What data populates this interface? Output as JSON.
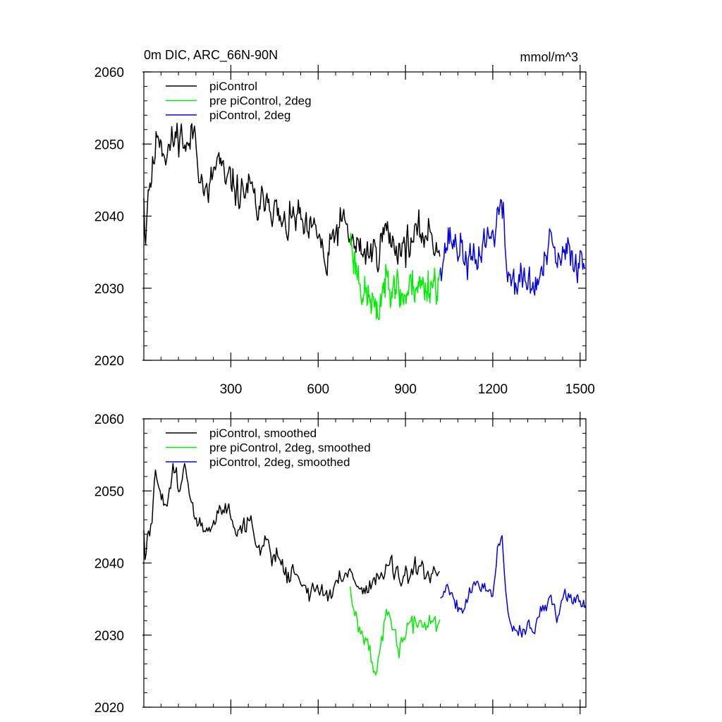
{
  "page": {
    "title": "0m DIC, ARC_66N-90N",
    "units": "mmol/m^3"
  },
  "chart_data": [
    {
      "type": "line",
      "title": "0m DIC, ARC_66N-90N",
      "units_label": "mmol/m^3",
      "xlim": [
        1,
        1520
      ],
      "ylim": [
        2020,
        2060
      ],
      "xticks": [
        300,
        600,
        900,
        1200,
        1500
      ],
      "xtick_labels": [
        "300",
        "600",
        "900",
        "1200",
        "1500"
      ],
      "yticks": [
        2020,
        2030,
        2040,
        2050,
        2060
      ],
      "ytick_labels": [
        "2020",
        "2030",
        "2040",
        "2050",
        "2060"
      ],
      "show_xtick_labels": true,
      "legend_position": "top-left",
      "series": [
        {
          "name": "piControl",
          "color": "#000000",
          "x_start": 1,
          "x_end": 1020,
          "step": 3,
          "keypoints": [
            [
              1,
              2044
            ],
            [
              5,
              2036
            ],
            [
              15,
              2044
            ],
            [
              30,
              2046
            ],
            [
              50,
              2052
            ],
            [
              75,
              2049
            ],
            [
              100,
              2050
            ],
            [
              125,
              2052
            ],
            [
              150,
              2049
            ],
            [
              175,
              2052
            ],
            [
              200,
              2045
            ],
            [
              220,
              2042
            ],
            [
              240,
              2046
            ],
            [
              260,
              2048
            ],
            [
              280,
              2044
            ],
            [
              300,
              2045
            ],
            [
              330,
              2043
            ],
            [
              360,
              2044
            ],
            [
              380,
              2042
            ],
            [
              400,
              2040
            ],
            [
              420,
              2044
            ],
            [
              450,
              2041
            ],
            [
              480,
              2038
            ],
            [
              500,
              2039
            ],
            [
              530,
              2040
            ],
            [
              560,
              2037
            ],
            [
              600,
              2038
            ],
            [
              630,
              2032
            ],
            [
              650,
              2037
            ],
            [
              680,
              2039
            ],
            [
              700,
              2038
            ],
            [
              720,
              2036
            ],
            [
              760,
              2035
            ],
            [
              800,
              2035
            ],
            [
              830,
              2038
            ],
            [
              860,
              2036
            ],
            [
              900,
              2036
            ],
            [
              940,
              2037
            ],
            [
              980,
              2038
            ],
            [
              1020,
              2035
            ]
          ],
          "jitter": 3.6,
          "seed": 11
        },
        {
          "name": "pre piControl, 2deg",
          "color": "#00ee00",
          "x_start": 710,
          "x_end": 1020,
          "step": 2,
          "keypoints": [
            [
              710,
              2037
            ],
            [
              730,
              2033
            ],
            [
              760,
              2029
            ],
            [
              790,
              2028
            ],
            [
              800,
              2025
            ],
            [
              820,
              2030
            ],
            [
              840,
              2031
            ],
            [
              860,
              2032
            ],
            [
              880,
              2029
            ],
            [
              900,
              2029
            ],
            [
              930,
              2031
            ],
            [
              960,
              2030
            ],
            [
              990,
              2031
            ],
            [
              1020,
              2031
            ]
          ],
          "jitter": 3.8,
          "seed": 23
        },
        {
          "name": "piControl, 2deg",
          "color": "#0000ee",
          "x_start": 1020,
          "x_end": 1520,
          "step": 3,
          "keypoints": [
            [
              1020,
              2034
            ],
            [
              1050,
              2037
            ],
            [
              1080,
              2036
            ],
            [
              1110,
              2034
            ],
            [
              1140,
              2033
            ],
            [
              1170,
              2037
            ],
            [
              1200,
              2037
            ],
            [
              1220,
              2041
            ],
            [
              1235,
              2040
            ],
            [
              1250,
              2032
            ],
            [
              1280,
              2031
            ],
            [
              1310,
              2031
            ],
            [
              1340,
              2030
            ],
            [
              1370,
              2032
            ],
            [
              1400,
              2036
            ],
            [
              1430,
              2033
            ],
            [
              1460,
              2035
            ],
            [
              1490,
              2034
            ],
            [
              1520,
              2033
            ]
          ],
          "jitter": 3.7,
          "seed": 37
        }
      ]
    },
    {
      "type": "line",
      "title": "",
      "xlim": [
        1,
        1520
      ],
      "ylim": [
        2020,
        2060
      ],
      "xticks": [
        300,
        600,
        900,
        1200,
        1500
      ],
      "xtick_labels": [],
      "yticks": [
        2020,
        2030,
        2040,
        2050,
        2060
      ],
      "ytick_labels": [
        "2020",
        "2030",
        "2040",
        "2050",
        "2060"
      ],
      "show_xtick_labels": false,
      "legend_position": "top-left",
      "series": [
        {
          "name": "piControl, smoothed",
          "color": "#000000",
          "x_start": 1,
          "x_end": 1020,
          "step": 4,
          "keypoints": [
            [
              1,
              2044
            ],
            [
              5,
              2040
            ],
            [
              15,
              2044
            ],
            [
              30,
              2045
            ],
            [
              40,
              2052
            ],
            [
              55,
              2051
            ],
            [
              75,
              2048
            ],
            [
              100,
              2053
            ],
            [
              120,
              2051
            ],
            [
              140,
              2054
            ],
            [
              160,
              2048
            ],
            [
              180,
              2046
            ],
            [
              200,
              2045
            ],
            [
              230,
              2044
            ],
            [
              260,
              2047
            ],
            [
              290,
              2048
            ],
            [
              320,
              2045
            ],
            [
              350,
              2045
            ],
            [
              370,
              2046
            ],
            [
              390,
              2042
            ],
            [
              420,
              2043
            ],
            [
              450,
              2041
            ],
            [
              480,
              2040
            ],
            [
              500,
              2038
            ],
            [
              530,
              2039
            ],
            [
              560,
              2036
            ],
            [
              590,
              2036
            ],
            [
              620,
              2036
            ],
            [
              640,
              2035
            ],
            [
              660,
              2037
            ],
            [
              690,
              2038
            ],
            [
              710,
              2040
            ],
            [
              730,
              2037
            ],
            [
              760,
              2036
            ],
            [
              790,
              2038
            ],
            [
              820,
              2038
            ],
            [
              850,
              2040
            ],
            [
              880,
              2037
            ],
            [
              910,
              2038
            ],
            [
              940,
              2039
            ],
            [
              980,
              2038
            ],
            [
              1020,
              2038
            ]
          ],
          "jitter": 2.0,
          "seed": 51
        },
        {
          "name": "pre piControl, 2deg, smoothed",
          "color": "#00ee00",
          "x_start": 710,
          "x_end": 1020,
          "step": 4,
          "keypoints": [
            [
              710,
              2037
            ],
            [
              730,
              2033
            ],
            [
              750,
              2030
            ],
            [
              770,
              2031
            ],
            [
              790,
              2026
            ],
            [
              800,
              2025
            ],
            [
              820,
              2029
            ],
            [
              840,
              2033
            ],
            [
              860,
              2030
            ],
            [
              880,
              2028
            ],
            [
              900,
              2031
            ],
            [
              930,
              2031
            ],
            [
              960,
              2032
            ],
            [
              990,
              2032
            ],
            [
              1020,
              2031
            ]
          ],
          "jitter": 2.2,
          "seed": 67
        },
        {
          "name": "piControl, 2deg, smoothed",
          "color": "#0000ee",
          "x_start": 1020,
          "x_end": 1520,
          "step": 4,
          "keypoints": [
            [
              1020,
              2035
            ],
            [
              1040,
              2037
            ],
            [
              1060,
              2036
            ],
            [
              1080,
              2034
            ],
            [
              1100,
              2034
            ],
            [
              1120,
              2036
            ],
            [
              1140,
              2037
            ],
            [
              1170,
              2037
            ],
            [
              1200,
              2036
            ],
            [
              1220,
              2043
            ],
            [
              1232,
              2043
            ],
            [
              1250,
              2033
            ],
            [
              1270,
              2031
            ],
            [
              1300,
              2031
            ],
            [
              1320,
              2031
            ],
            [
              1340,
              2030
            ],
            [
              1360,
              2033
            ],
            [
              1380,
              2033
            ],
            [
              1400,
              2036
            ],
            [
              1420,
              2033
            ],
            [
              1440,
              2035
            ],
            [
              1460,
              2036
            ],
            [
              1480,
              2035
            ],
            [
              1500,
              2035
            ],
            [
              1520,
              2034
            ]
          ],
          "jitter": 1.6,
          "seed": 79
        }
      ]
    }
  ]
}
